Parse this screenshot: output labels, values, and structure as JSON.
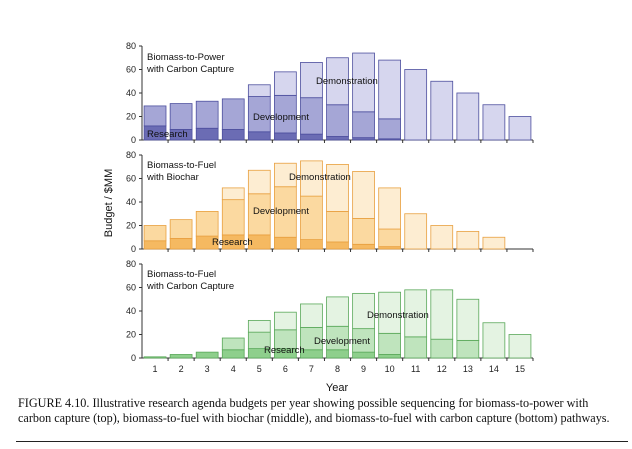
{
  "figure": {
    "caption": "FIGURE 4.10. Illustrative research agenda budgets per year showing possible sequencing for biomass-to-power with carbon capture (top), biomass-to-fuel with biochar (middle), and biomass-to-fuel with carbon capture (bottom) pathways.",
    "ylabel": "Budget / $MM",
    "xlabel": "Year"
  },
  "chart_data": [
    {
      "type": "bar",
      "stacked": true,
      "title": "Biomass-to-Power\nwith Carbon Capture",
      "categories": [
        "1",
        "2",
        "3",
        "4",
        "5",
        "6",
        "7",
        "8",
        "9",
        "10",
        "11",
        "12",
        "13",
        "14",
        "15"
      ],
      "ylim": [
        0,
        80
      ],
      "yticks": [
        0,
        20,
        40,
        60,
        80
      ],
      "colors": {
        "stroke": "#4d4f9e",
        "Research": "#6b6cb4",
        "Development": "#a5a6d6",
        "Demonstration": "#d6d6ee"
      },
      "series": [
        {
          "name": "Research",
          "values": [
            12,
            9,
            10,
            9,
            7,
            6,
            5,
            3,
            2,
            1,
            0,
            0,
            0,
            0,
            0
          ]
        },
        {
          "name": "Development",
          "values": [
            17,
            22,
            23,
            26,
            30,
            32,
            31,
            27,
            22,
            17,
            0,
            0,
            0,
            0,
            0
          ]
        },
        {
          "name": "Demonstration",
          "values": [
            0,
            0,
            0,
            0,
            10,
            20,
            30,
            40,
            50,
            50,
            60,
            50,
            40,
            30,
            20
          ]
        }
      ],
      "annotations": [
        "Research",
        "Development",
        "Demonstration"
      ]
    },
    {
      "type": "bar",
      "stacked": true,
      "title": "Biomass-to-Fuel\nwith Biochar",
      "categories": [
        "1",
        "2",
        "3",
        "4",
        "5",
        "6",
        "7",
        "8",
        "9",
        "10",
        "11",
        "12",
        "13",
        "14",
        "15"
      ],
      "ylim": [
        0,
        80
      ],
      "yticks": [
        0,
        20,
        40,
        60,
        80
      ],
      "colors": {
        "stroke": "#e8a040",
        "Research": "#f5b961",
        "Development": "#fbd9a0",
        "Demonstration": "#fdedd2"
      },
      "series": [
        {
          "name": "Research",
          "values": [
            7,
            9,
            11,
            12,
            12,
            10,
            8,
            6,
            4,
            2,
            0,
            0,
            0,
            0,
            0
          ]
        },
        {
          "name": "Development",
          "values": [
            13,
            16,
            21,
            30,
            35,
            43,
            37,
            26,
            22,
            15,
            0,
            0,
            0,
            0,
            0
          ]
        },
        {
          "name": "Demonstration",
          "values": [
            0,
            0,
            0,
            10,
            20,
            20,
            30,
            40,
            40,
            35,
            30,
            20,
            15,
            10,
            0
          ]
        }
      ],
      "annotations": [
        "Research",
        "Development",
        "Demonstration"
      ]
    },
    {
      "type": "bar",
      "stacked": true,
      "title": "Biomass-to-Fuel\nwith Carbon Capture",
      "categories": [
        "1",
        "2",
        "3",
        "4",
        "5",
        "6",
        "7",
        "8",
        "9",
        "10",
        "11",
        "12",
        "13",
        "14",
        "15"
      ],
      "ylim": [
        0,
        80
      ],
      "yticks": [
        0,
        20,
        40,
        60,
        80
      ],
      "colors": {
        "stroke": "#5aa85a",
        "Research": "#8ecf8c",
        "Development": "#bfe4bd",
        "Demonstration": "#e4f3e2"
      },
      "series": [
        {
          "name": "Research",
          "values": [
            1,
            3,
            5,
            7,
            8,
            8,
            7,
            7,
            5,
            3,
            0,
            0,
            0,
            0,
            0
          ]
        },
        {
          "name": "Development",
          "values": [
            0,
            0,
            0,
            10,
            14,
            16,
            19,
            20,
            20,
            18,
            18,
            16,
            15,
            0,
            0
          ]
        },
        {
          "name": "Demonstration",
          "values": [
            0,
            0,
            0,
            0,
            10,
            15,
            20,
            25,
            30,
            35,
            40,
            42,
            35,
            30,
            20
          ]
        }
      ],
      "annotations": [
        "Research",
        "Development",
        "Demonstration"
      ]
    }
  ]
}
